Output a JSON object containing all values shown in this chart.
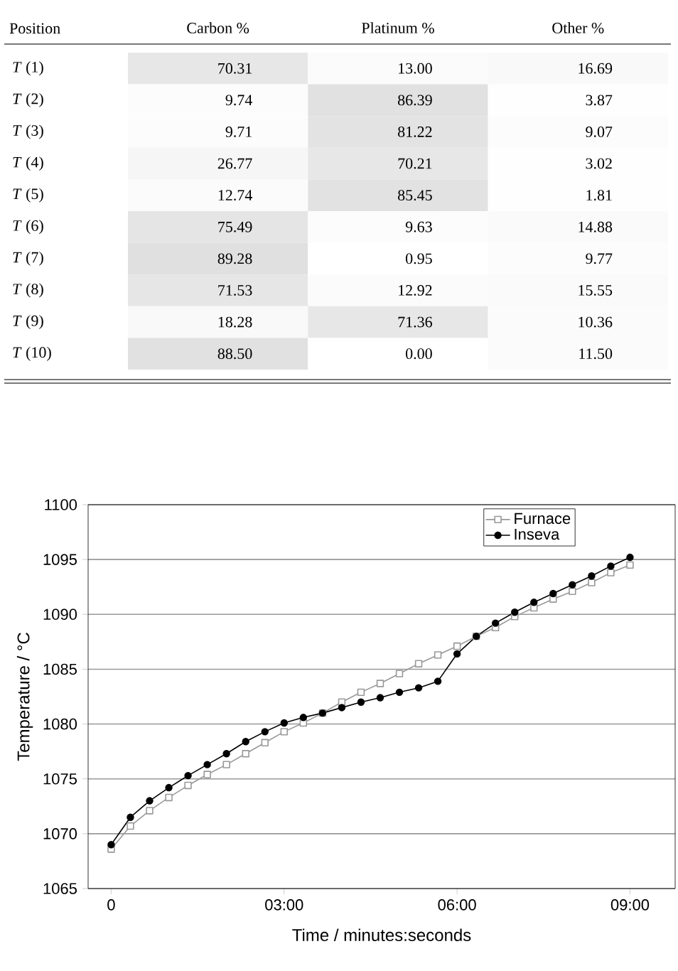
{
  "chart_data": [
    {
      "type": "heatmap",
      "ylabel": "Position",
      "categories": [
        "Carbon %",
        "Platinum %",
        "Other %"
      ],
      "y_categories": [
        "*T* (1)",
        "*T* (2)",
        "*T* (3)",
        "*T* (4)",
        "*T* (5)",
        "*T* (6)",
        "*T* (7)",
        "*T* (8)",
        "*T* (9)",
        "*T* (10)"
      ],
      "cells": [
        [
          70.31,
          13.0,
          16.69
        ],
        [
          9.74,
          86.39,
          3.87
        ],
        [
          9.71,
          81.22,
          9.07
        ],
        [
          26.77,
          70.21,
          3.02
        ],
        [
          12.74,
          85.45,
          1.81
        ],
        [
          75.49,
          9.63,
          14.88
        ],
        [
          89.28,
          0.95,
          9.77
        ],
        [
          71.53,
          12.92,
          15.55
        ],
        [
          18.28,
          71.36,
          10.36
        ],
        [
          88.5,
          0.0,
          11.5
        ]
      ],
      "cell_labels": [
        [
          "70.31",
          "13.00",
          "16.69"
        ],
        [
          "9.74",
          "86.39",
          "3.87"
        ],
        [
          "9.71",
          "81.22",
          "9.07"
        ],
        [
          "26.77",
          "70.21",
          "3.02"
        ],
        [
          "12.74",
          "85.45",
          "1.81"
        ],
        [
          "75.49",
          "9.63",
          "14.88"
        ],
        [
          "89.28",
          "0.95",
          "9.77"
        ],
        [
          "71.53",
          "12.92",
          "15.55"
        ],
        [
          "18.28",
          "71.36",
          "10.36"
        ],
        [
          "88.50",
          "0.00",
          "11.50"
        ]
      ]
    },
    {
      "type": "line",
      "xlabel": "Time / minutes:seconds",
      "ylabel": "Temperature / °C",
      "x": [
        0,
        20,
        40,
        60,
        80,
        100,
        120,
        140,
        160,
        180,
        200,
        220,
        240,
        260,
        280,
        300,
        320,
        340,
        360,
        380,
        400,
        420,
        440,
        460,
        480,
        500,
        520,
        540
      ],
      "series": [
        {
          "name": "Furnace",
          "color": "#999999",
          "marker": "square",
          "values": [
            1068.6,
            1070.7,
            1072.1,
            1073.3,
            1074.4,
            1075.4,
            1076.3,
            1077.3,
            1078.3,
            1079.3,
            1080.1,
            1081.0,
            1082.0,
            1082.9,
            1083.7,
            1084.6,
            1085.5,
            1086.3,
            1087.1,
            1088.0,
            1088.8,
            1089.8,
            1090.6,
            1091.4,
            1092.1,
            1092.9,
            1093.8,
            1094.5
          ]
        },
        {
          "name": "Inseva",
          "color": "#000000",
          "marker": "circle",
          "values": [
            1069.0,
            1071.5,
            1073.0,
            1074.2,
            1075.3,
            1076.3,
            1077.3,
            1078.4,
            1079.3,
            1080.1,
            1080.6,
            1081.0,
            1081.5,
            1082.0,
            1082.4,
            1082.9,
            1083.3,
            1083.9,
            1086.4,
            1088.0,
            1089.2,
            1090.2,
            1091.1,
            1091.9,
            1092.7,
            1093.5,
            1094.4,
            1095.2
          ]
        }
      ],
      "xlim": [
        -24,
        587
      ],
      "ylim": [
        1065,
        1100
      ],
      "xticks": [
        0,
        {
          "value": 180,
          "label": "03:00"
        },
        {
          "value": 360,
          "label": "06:00"
        },
        {
          "value": 540,
          "label": "09:00"
        }
      ],
      "yticks": [
        1065,
        1070,
        1075,
        1080,
        1085,
        1090,
        1095,
        1100
      ],
      "grid": "y",
      "legend": "top right",
      "line_style": "solid"
    }
  ]
}
